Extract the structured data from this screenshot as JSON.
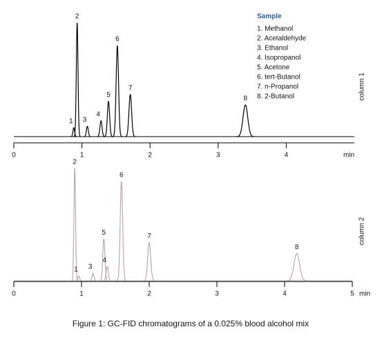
{
  "chart_data": [
    {
      "type": "chromatogram",
      "side_label": "column 1",
      "xlabel": "min",
      "color": "#000000",
      "xlim": [
        0,
        5
      ],
      "xticks": [
        0,
        1,
        2,
        3,
        4
      ],
      "ylim": [
        0,
        170
      ],
      "peaks": {
        "labels": [
          "1",
          "2",
          "3",
          "4",
          "5",
          "6",
          "7",
          "8"
        ],
        "x": [
          0.88,
          0.93,
          1.08,
          1.28,
          1.39,
          1.52,
          1.71,
          3.4
        ],
        "values": [
          13,
          165,
          15,
          23,
          51,
          132,
          61,
          46
        ]
      },
      "legend_title": "Sample",
      "legend": [
        "1. Methanol",
        "2. Acetaldehyde",
        "3. Ethanol",
        "4. Isopropanol",
        "5. Acetone",
        "6. tert-Butanol",
        "7. n-Propanol",
        "8. 2-Butanol"
      ]
    },
    {
      "type": "chromatogram",
      "side_label": "column 2",
      "xlabel": "min",
      "color": "#b9a9af",
      "xlim": [
        0,
        5
      ],
      "xticks": [
        0,
        1,
        2,
        3,
        4,
        5
      ],
      "ylim": [
        0,
        170
      ],
      "peaks": {
        "labels": [
          "2",
          "1",
          "3",
          "5",
          "4",
          "6",
          "7",
          "8"
        ],
        "x": [
          0.9,
          0.96,
          1.17,
          1.33,
          1.38,
          1.59,
          2.0,
          4.18
        ],
        "values": [
          164,
          7,
          11,
          61,
          21,
          145,
          56,
          40
        ]
      }
    }
  ],
  "caption": "Figure 1: GC-FID chromatograms of a 0.025% blood alcohol mix"
}
